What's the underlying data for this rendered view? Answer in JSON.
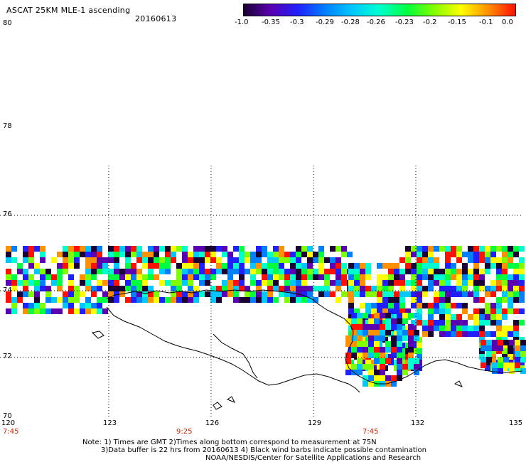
{
  "header": {
    "title": "ASCAT 25KM MLE-1 ascending",
    "date": "20160613"
  },
  "colorbar": {
    "labels": [
      "-1.0",
      "-0.35",
      "-0.3",
      "-0.29",
      "-0.28",
      "-0.26",
      "-0.23",
      "-0.2",
      "-0.15",
      "-0.1",
      "0.0"
    ],
    "colors": [
      "#1a0033",
      "#5a00b0",
      "#2020ff",
      "#0080ff",
      "#00c8ff",
      "#00ffd0",
      "#00ff40",
      "#80ff00",
      "#ffff00",
      "#ff9000",
      "#ff1000"
    ]
  },
  "map": {
    "lat_labels": [
      "80",
      "78",
      "76",
      "74",
      "72",
      "70"
    ],
    "lon_labels": [
      "120",
      "123",
      "126",
      "129",
      "132",
      "135"
    ],
    "time_labels": [
      "7:45",
      "9:25",
      "7:45"
    ],
    "cell_colors": [
      "#5a00b0",
      "#2020ff",
      "#0080ff",
      "#00c8ff",
      "#00ffd0",
      "#00ff40",
      "#80ff00",
      "#ffff00",
      "#ff9000",
      "#ff1000",
      "#1a0033"
    ]
  },
  "notes": {
    "line1": "Note: 1) Times are GMT 2)Times along bottom correspond to measurement at 75N",
    "line2": "3)Data buffer is 22 hrs from 20160613 4) Black wind barbs indicate possible contamination",
    "line3": "NOAA/NESDIS/Center for Satellite Applications and Research"
  }
}
